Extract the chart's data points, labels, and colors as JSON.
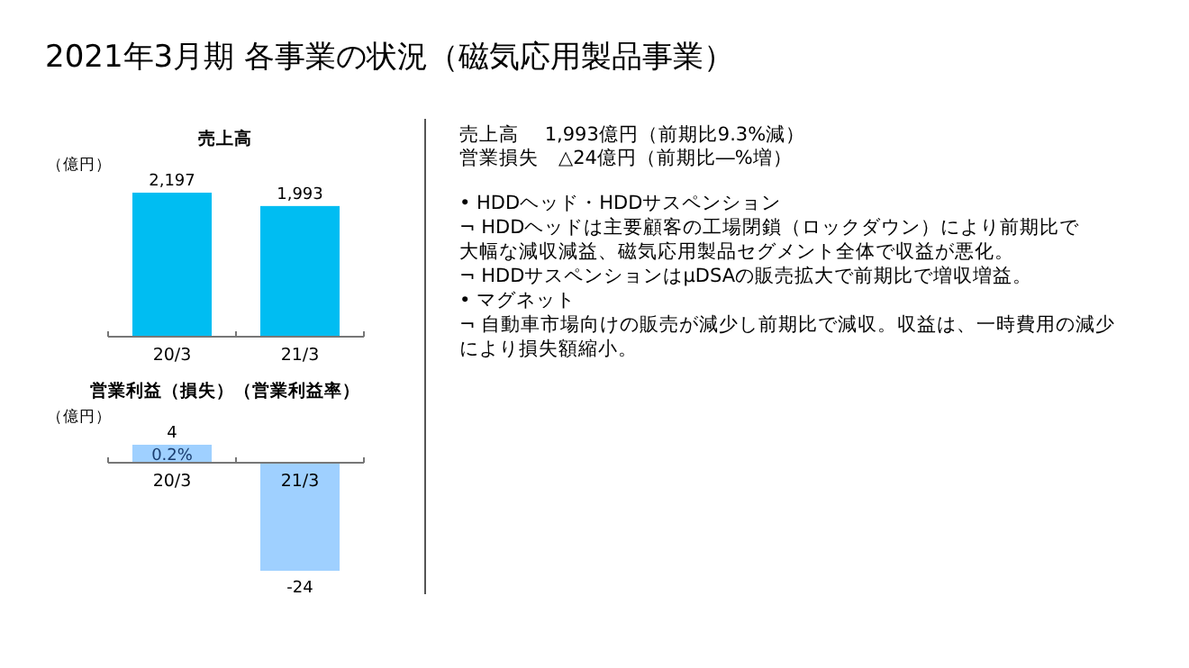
{
  "chart_data": [
    {
      "type": "other",
      "title": "2021年3月期 各事業の状況（磁気応用製品事業）"
    },
    {
      "type": "bar",
      "title": "売上高",
      "ylabel": "（億円）",
      "categories": [
        "20/3",
        "21/3"
      ],
      "values": [
        2197,
        1993
      ],
      "value_labels": [
        "2,197",
        "1,993"
      ],
      "color": "#00bdf2"
    },
    {
      "type": "bar",
      "title": "営業利益（損失）（営業利益率）",
      "ylabel": "（億円）",
      "categories": [
        "20/3",
        "21/3"
      ],
      "values": [
        4,
        -24
      ],
      "color": "#9fd0ff",
      "data_labels": true,
      "annotations": [
        {
          "text": "0.2%",
          "x": "20/3",
          "y": 4
        }
      ]
    },
    {
      "type": "other",
      "annotations": [
        "売上高　 1,993億円（前期比9.3%減）",
        "営業損失　△24億円（前期比―%増）",
        "• HDDヘッド・HDDサスペンション",
        "¬ HDDヘッドは主要顧客の工場閉鎖（ロックダウン）により前期比で",
        "大幅な減収減益、磁気応用製品セグメント全体で収益が悪化。",
        "¬ HDDサスペンションはμDSAの販売拡大で前期比で増収増益。",
        "• マグネット",
        "¬ 自動車市場向けの販売が減少し前期比で減収。収益は、一時費用の減少",
        "により損失額縮小。"
      ]
    }
  ]
}
